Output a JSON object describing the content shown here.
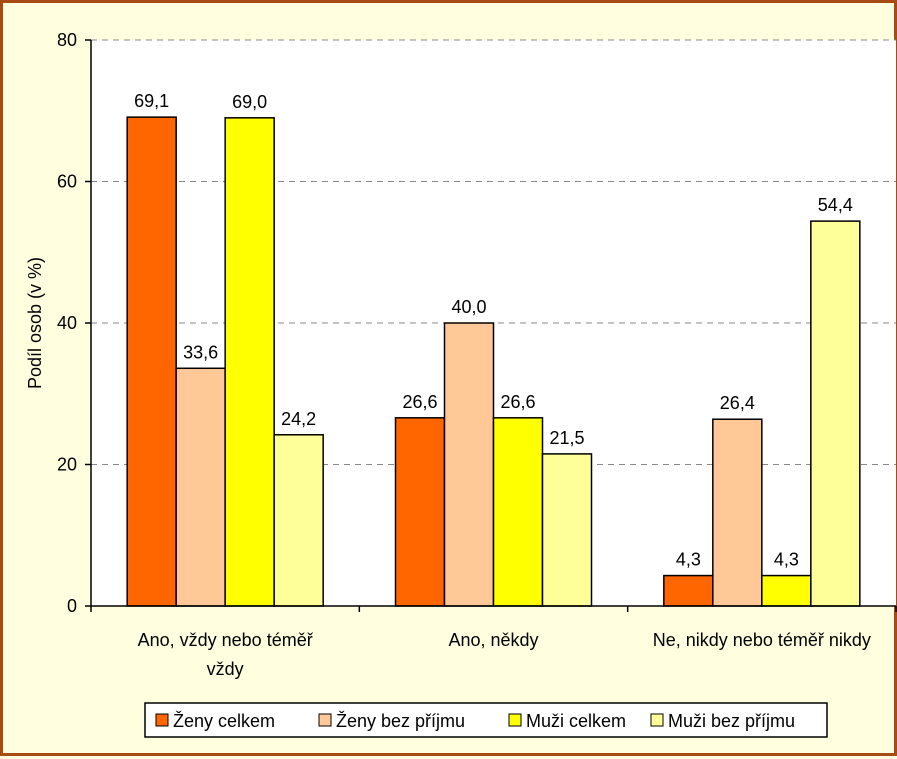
{
  "chart_data": {
    "type": "bar",
    "categories": [
      "Ano, vždy nebo téměř vždy",
      "Ano, někdy",
      "Ne, nikdy nebo téměř nikdy"
    ],
    "category_lines": [
      [
        "Ano, vždy nebo téměř",
        "vždy"
      ],
      [
        "Ano, někdy"
      ],
      [
        "Ne, nikdy nebo téměř nikdy"
      ]
    ],
    "series": [
      {
        "name": "Ženy celkem",
        "values": [
          69.1,
          26.6,
          4.3
        ],
        "labels": [
          "69,1",
          "26,6",
          "4,3"
        ],
        "color": "#ff6600"
      },
      {
        "name": "Ženy bez příjmu",
        "values": [
          33.6,
          40.0,
          26.4
        ],
        "labels": [
          "33,6",
          "40,0",
          "26,4"
        ],
        "color": "#ffc896"
      },
      {
        "name": "Muži celkem",
        "values": [
          69.0,
          26.6,
          4.3
        ],
        "labels": [
          "69,0",
          "26,6",
          "4,3"
        ],
        "color": "#ffff00"
      },
      {
        "name": "Muži bez příjmu",
        "values": [
          24.2,
          21.5,
          54.4
        ],
        "labels": [
          "24,2",
          "21,5",
          "54,4"
        ],
        "color": "#ffff99"
      }
    ],
    "ylabel": "Podíl osob (v %)",
    "xlabel": "",
    "ylim": [
      0,
      80
    ],
    "yticks": [
      0,
      20,
      40,
      60,
      80
    ],
    "grid": true,
    "legend_position": "bottom"
  },
  "colors": {
    "frame_border": "#a64b14",
    "background": "#ffffe0",
    "plot_background": "#ffffff"
  }
}
